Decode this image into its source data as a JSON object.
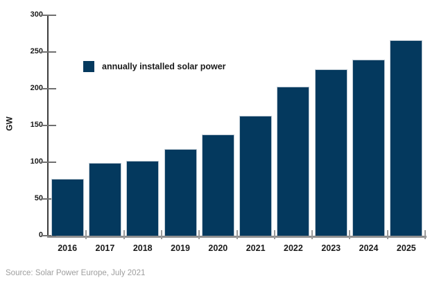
{
  "chart_data": {
    "type": "bar",
    "title": "",
    "categories": [
      "2016",
      "2017",
      "2018",
      "2019",
      "2020",
      "2021",
      "2022",
      "2023",
      "2024",
      "2025"
    ],
    "values": [
      77,
      99,
      102,
      118,
      138,
      163,
      203,
      226,
      240,
      266
    ],
    "xlabel": "",
    "ylabel": "GW",
    "ylim": [
      0,
      300
    ],
    "yticks": [
      0,
      50,
      100,
      150,
      200,
      250,
      300
    ],
    "grid": false,
    "bar_color": "#04395e",
    "bar_edge_color": "#bdc9d3",
    "legend_position": "inside-upper-left",
    "legend": [
      {
        "label": "annually installed solar power",
        "color": "#04395e"
      }
    ]
  },
  "footer": {
    "source_note": "Source: Solar Power Europe, July 2021"
  },
  "colors": {
    "background": "#ffffff",
    "bar": "#04395e",
    "bar_edge": "#bdc9d3",
    "y_axis_line": "#3c3c3c",
    "x_axis_line": "#8f8f8f",
    "y_tick": "#6f6f6f",
    "x_tick": "#9a9a9a",
    "label_text": "#1a1a1a",
    "source_text": "#9e9e9e"
  }
}
